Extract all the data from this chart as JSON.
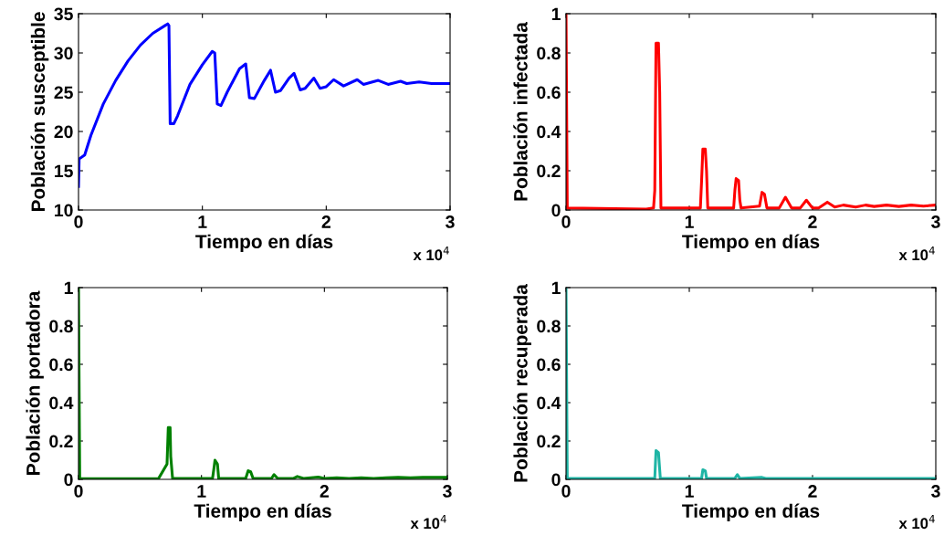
{
  "chart_data": [
    {
      "type": "line",
      "xlabel": "Tiempo en días",
      "ylabel": "Población susceptible",
      "annotations": [
        "x 10$^{4}$"
      ],
      "xlim": [
        0,
        3
      ],
      "xticks": [
        0,
        1,
        2,
        3
      ],
      "ylim": [
        10,
        35
      ],
      "yticks": [
        10,
        15,
        20,
        25,
        30,
        35
      ],
      "series": [
        {
          "color": "#0000ff",
          "x": [
            0,
            0.005,
            0.05,
            0.1,
            0.2,
            0.3,
            0.4,
            0.5,
            0.6,
            0.7,
            0.72,
            0.73,
            0.74,
            0.77,
            0.8,
            0.9,
            1.0,
            1.08,
            1.1,
            1.12,
            1.15,
            1.2,
            1.3,
            1.35,
            1.38,
            1.42,
            1.5,
            1.55,
            1.59,
            1.63,
            1.7,
            1.74,
            1.79,
            1.83,
            1.9,
            1.95,
            2.0,
            2.06,
            2.14,
            2.25,
            2.3,
            2.42,
            2.5,
            2.6,
            2.65,
            2.75,
            2.85,
            3.0
          ],
          "values": [
            13,
            16.5,
            17,
            19.5,
            23.5,
            26.5,
            29,
            31,
            32.5,
            33.5,
            33.7,
            33.5,
            21,
            21,
            22,
            26,
            28.5,
            30.2,
            30,
            23.5,
            23.3,
            25,
            28,
            28.6,
            24.3,
            24.2,
            26.5,
            27.8,
            25,
            25.2,
            26.8,
            27.4,
            25.3,
            25.5,
            26.8,
            25.5,
            25.7,
            26.6,
            25.8,
            26.6,
            26,
            26.5,
            26,
            26.4,
            26.1,
            26.3,
            26.1,
            26.1
          ]
        }
      ]
    },
    {
      "type": "line",
      "xlabel": "Tiempo en días",
      "ylabel": "Población infectada",
      "annotations": [
        "x 10$^{4}$"
      ],
      "xlim": [
        0,
        3
      ],
      "xticks": [
        0,
        1,
        2,
        3
      ],
      "ylim": [
        0,
        1
      ],
      "yticks": [
        0,
        0.2,
        0.4,
        0.6,
        0.8,
        1
      ],
      "series": [
        {
          "color": "#ff0000",
          "x": [
            0,
            0.01,
            0.65,
            0.71,
            0.72,
            0.73,
            0.75,
            0.76,
            0.77,
            1.09,
            1.1,
            1.11,
            1.13,
            1.14,
            1.15,
            1.36,
            1.37,
            1.38,
            1.4,
            1.41,
            1.42,
            1.57,
            1.59,
            1.61,
            1.63,
            1.73,
            1.78,
            1.83,
            1.9,
            1.95,
            2.0,
            2.05,
            2.12,
            2.18,
            2.25,
            2.35,
            2.43,
            2.5,
            2.6,
            2.7,
            2.8,
            2.9,
            3.0
          ],
          "values": [
            1,
            0.01,
            0.005,
            0.01,
            0.1,
            0.85,
            0.85,
            0.6,
            0.01,
            0.01,
            0.15,
            0.31,
            0.31,
            0.2,
            0.01,
            0.01,
            0.1,
            0.16,
            0.15,
            0.05,
            0.01,
            0.02,
            0.09,
            0.08,
            0.01,
            0.01,
            0.065,
            0.01,
            0.01,
            0.05,
            0.01,
            0.01,
            0.04,
            0.015,
            0.025,
            0.015,
            0.025,
            0.018,
            0.025,
            0.018,
            0.025,
            0.02,
            0.025
          ]
        }
      ]
    },
    {
      "type": "line",
      "xlabel": "Tiempo en días",
      "ylabel": "Población portadora",
      "annotations": [
        "x 10$^{4}$"
      ],
      "xlim": [
        0,
        3
      ],
      "xticks": [
        0,
        1,
        2,
        3
      ],
      "ylim": [
        0,
        1
      ],
      "yticks": [
        0,
        0.2,
        0.4,
        0.6,
        0.8,
        1
      ],
      "series": [
        {
          "color": "#008000",
          "x": [
            0,
            0.01,
            0.65,
            0.72,
            0.73,
            0.745,
            0.75,
            0.765,
            1.09,
            1.1,
            1.11,
            1.13,
            1.14,
            1.36,
            1.38,
            1.4,
            1.42,
            1.57,
            1.59,
            1.62,
            1.75,
            1.78,
            1.83,
            1.95,
            2.0,
            2.1,
            2.2,
            2.3,
            2.4,
            2.5,
            2.6,
            2.7,
            2.8,
            3.0
          ],
          "values": [
            1,
            0.005,
            0.003,
            0.08,
            0.27,
            0.27,
            0.12,
            0.005,
            0.005,
            0.05,
            0.1,
            0.08,
            0.005,
            0.005,
            0.045,
            0.04,
            0.005,
            0.005,
            0.025,
            0.005,
            0.005,
            0.015,
            0.005,
            0.012,
            0.005,
            0.008,
            0.005,
            0.008,
            0.005,
            0.008,
            0.01,
            0.008,
            0.01,
            0.01
          ]
        }
      ]
    },
    {
      "type": "line",
      "xlabel": "Tiempo en días",
      "ylabel": "Población recuperada",
      "annotations": [
        "x 10$^{4}$"
      ],
      "xlim": [
        0,
        3
      ],
      "xticks": [
        0,
        1,
        2,
        3
      ],
      "ylim": [
        0,
        1
      ],
      "yticks": [
        0,
        0.2,
        0.4,
        0.6,
        0.8,
        1
      ],
      "series": [
        {
          "color": "#1fb5a5",
          "x": [
            0,
            0.01,
            0.72,
            0.73,
            0.75,
            0.765,
            1.1,
            1.11,
            1.13,
            1.14,
            1.37,
            1.39,
            1.41,
            1.59,
            1.62,
            3.0
          ],
          "values": [
            1,
            0.005,
            0.005,
            0.15,
            0.14,
            0.005,
            0.005,
            0.05,
            0.045,
            0.005,
            0.005,
            0.025,
            0.005,
            0.01,
            0.005,
            0.005
          ]
        }
      ]
    }
  ]
}
